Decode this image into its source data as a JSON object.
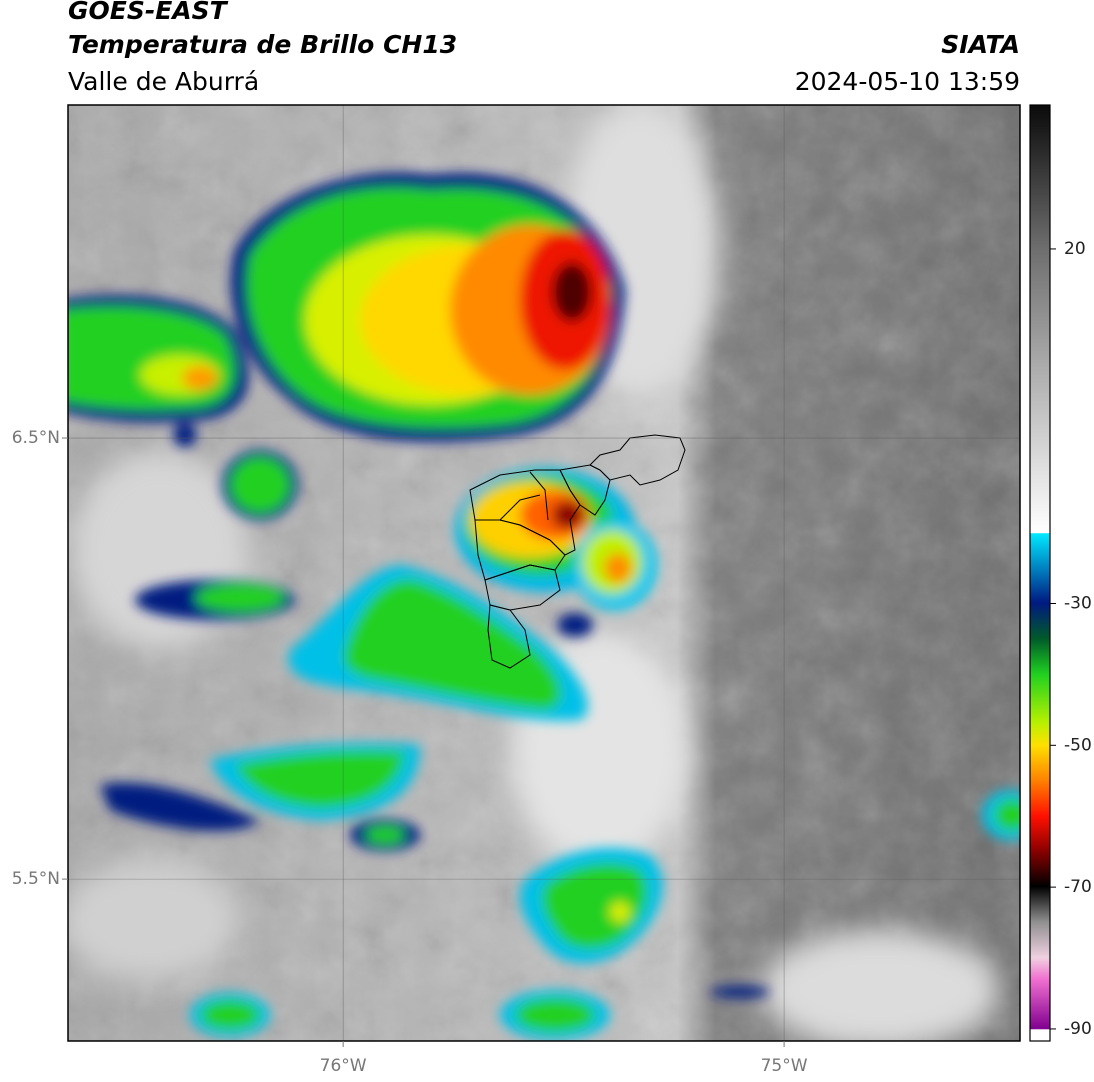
{
  "header": {
    "title": "GOES-EAST",
    "subtitle": "Temperatura de Brillo CH13",
    "region": "Valle de Aburrá",
    "source": "SIATA",
    "datetime": "2024-05-10 13:59"
  },
  "map": {
    "lonlim": [
      -76.624,
      -74.465
    ],
    "latlim": [
      5.133,
      7.255
    ],
    "lonticks": [
      {
        "value": -76,
        "label": "76°W"
      },
      {
        "value": -75,
        "label": "75°W"
      }
    ],
    "latticks": [
      {
        "value": 6.5,
        "label": "6.5°N"
      },
      {
        "value": 5.5,
        "label": "5.5°N"
      }
    ],
    "grid": true
  },
  "colorbar": {
    "clim": [
      -91.7,
      40.3
    ],
    "ticks": [
      20,
      -30,
      -50,
      -70,
      -90
    ]
  }
}
